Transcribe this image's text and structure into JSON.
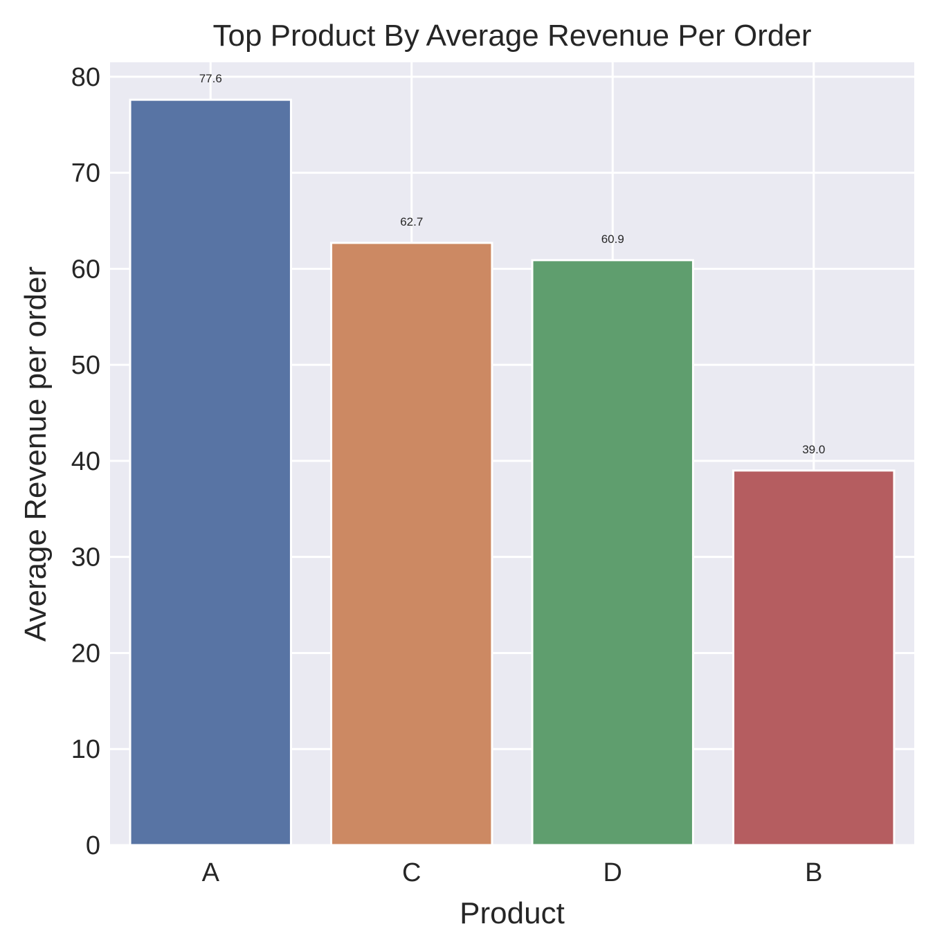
{
  "chart_data": {
    "type": "bar",
    "title": "Top Product By Average Revenue Per Order",
    "xlabel": "Product",
    "ylabel": "Average Revenue per order",
    "categories": [
      "A",
      "C",
      "D",
      "B"
    ],
    "values": [
      77.6,
      62.7,
      60.9,
      39.0
    ],
    "data_labels": [
      "77.6",
      "62.7",
      "60.9",
      "39.0"
    ],
    "colors": [
      "#5874a4",
      "#cc8963",
      "#5f9e6e",
      "#b55d60"
    ],
    "ylim": [
      0,
      81.5
    ],
    "yticks": [
      0,
      10,
      20,
      30,
      40,
      50,
      60,
      70,
      80
    ],
    "ytick_labels": [
      "0",
      "10",
      "20",
      "30",
      "40",
      "50",
      "60",
      "70",
      "80"
    ],
    "grid": true,
    "legend": "none",
    "style": {
      "plot_background": "#eaeaf2",
      "grid_color": "#ffffff",
      "bar_edge_color": "#ffffff"
    }
  }
}
